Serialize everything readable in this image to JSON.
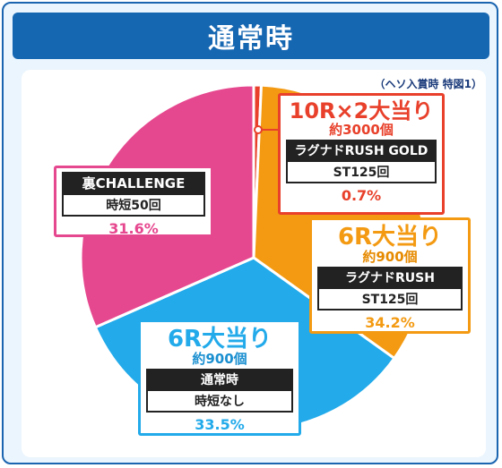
{
  "page": {
    "title": "通常時",
    "note": "（ヘソ入賞時 特図1）"
  },
  "chart_data": {
    "type": "pie",
    "title": "通常時",
    "slices": [
      {
        "label": "10R×2大当り",
        "value": 0.7,
        "percent": "0.7%",
        "color": "#e8402a",
        "sub": "約3000個",
        "mode": "ラグナドRUSH GOLD",
        "detail": "ST125回"
      },
      {
        "label": "6R大当り",
        "value": 34.2,
        "percent": "34.2%",
        "color": "#f39a12",
        "sub": "約900個",
        "mode": "ラグナドRUSH",
        "detail": "ST125回"
      },
      {
        "label": "6R大当り",
        "value": 33.5,
        "percent": "33.5%",
        "color": "#22aaea",
        "sub": "約900個",
        "mode": "通常時",
        "detail": "時短なし"
      },
      {
        "label": "裏CHALLENGE",
        "value": 31.6,
        "percent": "31.6%",
        "color": "#e6488f",
        "sub": "",
        "mode": "",
        "detail": "時短50回"
      }
    ]
  }
}
